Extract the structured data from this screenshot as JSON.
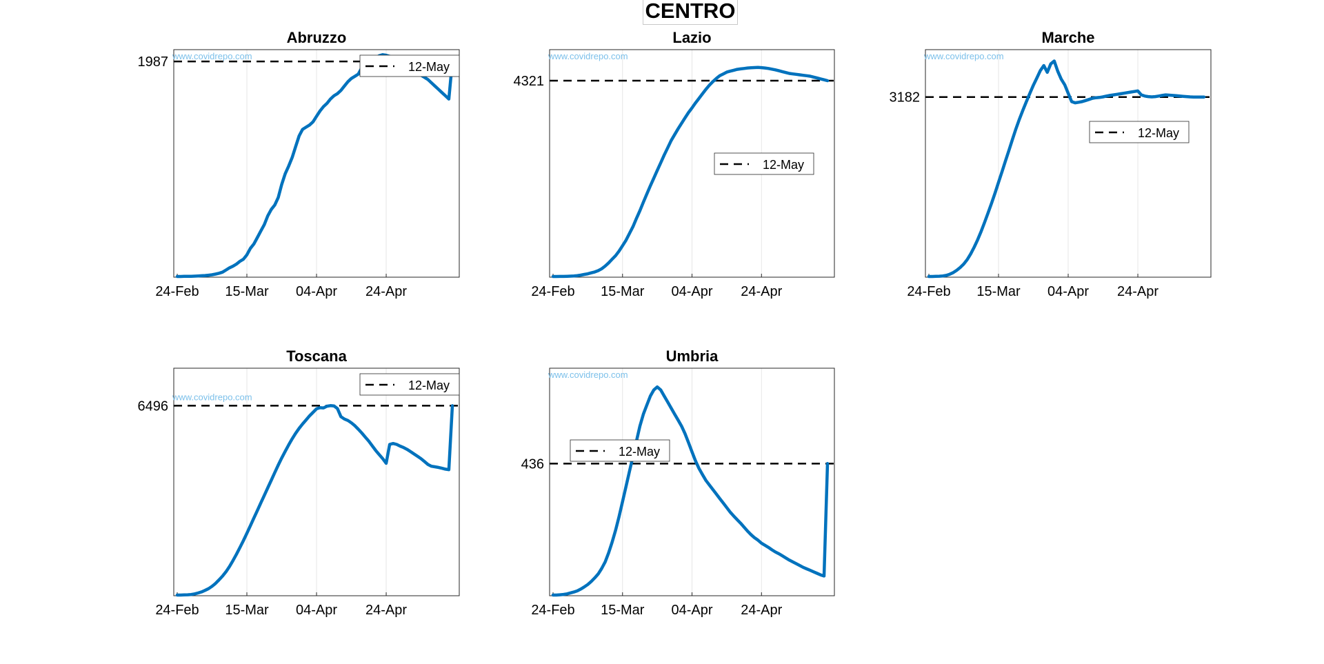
{
  "figure": {
    "title": "CENTRO"
  },
  "watermark": "www.covidrepo.com",
  "colors": {
    "series": "#0072bd",
    "reference": "#000000",
    "grid": "#e6e6e6",
    "axes": "#262626"
  },
  "chart_data": [
    {
      "type": "line",
      "title": "Abruzzo",
      "x_ticks": [
        "24-Feb",
        "15-Mar",
        "04-Apr",
        "24-Apr"
      ],
      "x_range_days": [
        0,
        79
      ],
      "ylim": [
        0,
        2090
      ],
      "y_ticks": [
        1987
      ],
      "reference_line": {
        "label": "12-May",
        "value": 1987
      },
      "legend": {
        "entry": "12-May",
        "placement": "top-right"
      },
      "series": [
        {
          "values": [
            0,
            0,
            1,
            1,
            2,
            3,
            5,
            7,
            9,
            12,
            16,
            22,
            30,
            40,
            60,
            80,
            95,
            115,
            140,
            160,
            200,
            260,
            300,
            360,
            420,
            480,
            560,
            620,
            660,
            730,
            850,
            950,
            1020,
            1100,
            1200,
            1300,
            1360,
            1380,
            1400,
            1430,
            1480,
            1530,
            1570,
            1600,
            1640,
            1670,
            1690,
            1720,
            1760,
            1800,
            1830,
            1850,
            1870,
            1930,
            1955,
            1975,
            2010,
            2020,
            2040,
            2050,
            2045,
            2035,
            2020,
            2000,
            1985,
            1960,
            1940,
            1920,
            1900,
            1880,
            1860,
            1840,
            1820,
            1790,
            1760,
            1730,
            1700,
            1670,
            1640,
            1987
          ]
        }
      ]
    },
    {
      "type": "line",
      "title": "Lazio",
      "x_ticks": [
        "24-Feb",
        "15-Mar",
        "04-Apr",
        "24-Apr"
      ],
      "x_range_days": [
        0,
        79
      ],
      "ylim": [
        0,
        4990
      ],
      "y_ticks": [
        4321
      ],
      "reference_line": {
        "label": "12-May",
        "value": 4321
      },
      "legend": {
        "entry": "12-May",
        "placement": "center-right"
      },
      "series": [
        {
          "values": [
            0,
            0,
            1,
            2,
            4,
            7,
            12,
            20,
            30,
            45,
            60,
            80,
            100,
            130,
            170,
            230,
            300,
            380,
            460,
            560,
            680,
            800,
            950,
            1100,
            1280,
            1450,
            1640,
            1820,
            2000,
            2170,
            2340,
            2510,
            2680,
            2840,
            3000,
            3130,
            3260,
            3380,
            3500,
            3620,
            3720,
            3830,
            3930,
            4030,
            4130,
            4220,
            4300,
            4370,
            4430,
            4470,
            4510,
            4530,
            4550,
            4570,
            4580,
            4590,
            4600,
            4605,
            4610,
            4612,
            4608,
            4600,
            4590,
            4575,
            4560,
            4540,
            4520,
            4500,
            4480,
            4470,
            4460,
            4450,
            4440,
            4430,
            4420,
            4400,
            4380,
            4360,
            4340,
            4321
          ]
        }
      ]
    },
    {
      "type": "line",
      "title": "Marche",
      "x_ticks": [
        "24-Feb",
        "15-Mar",
        "04-Apr",
        "24-Apr"
      ],
      "x_range_days": [
        0,
        79
      ],
      "ylim": [
        0,
        4010
      ],
      "y_ticks": [
        3182
      ],
      "reference_line": {
        "label": "12-May",
        "value": 3182
      },
      "legend": {
        "entry": "12-May",
        "placement": "center-right"
      },
      "series": [
        {
          "values": [
            0,
            0,
            2,
            5,
            10,
            20,
            40,
            70,
            110,
            160,
            220,
            300,
            400,
            520,
            650,
            800,
            960,
            1130,
            1300,
            1480,
            1670,
            1860,
            2050,
            2240,
            2430,
            2620,
            2790,
            2950,
            3100,
            3250,
            3390,
            3520,
            3650,
            3740,
            3620,
            3770,
            3820,
            3640,
            3500,
            3400,
            3250,
            3100,
            3080,
            3090,
            3100,
            3120,
            3140,
            3160,
            3170,
            3175,
            3185,
            3200,
            3210,
            3220,
            3230,
            3240,
            3250,
            3260,
            3270,
            3280,
            3290,
            3220,
            3200,
            3190,
            3185,
            3190,
            3200,
            3210,
            3220,
            3215,
            3210,
            3205,
            3200,
            3195,
            3190,
            3185,
            3182,
            3182,
            3182,
            3182
          ]
        }
      ]
    },
    {
      "type": "line",
      "title": "Toscana",
      "x_ticks": [
        "24-Feb",
        "15-Mar",
        "04-Apr",
        "24-Apr"
      ],
      "x_range_days": [
        0,
        79
      ],
      "ylim": [
        0,
        7760
      ],
      "y_ticks": [
        6496
      ],
      "reference_line": {
        "label": "12-May",
        "value": 6496
      },
      "legend": {
        "entry": "12-May",
        "placement": "top-right"
      },
      "series": [
        {
          "values": [
            0,
            0,
            5,
            10,
            20,
            40,
            70,
            110,
            160,
            220,
            300,
            400,
            520,
            650,
            800,
            980,
            1180,
            1400,
            1630,
            1870,
            2120,
            2380,
            2640,
            2900,
            3160,
            3420,
            3680,
            3940,
            4200,
            4460,
            4700,
            4930,
            5150,
            5360,
            5550,
            5720,
            5870,
            6010,
            6150,
            6270,
            6390,
            6430,
            6420,
            6480,
            6500,
            6490,
            6400,
            6120,
            6040,
            5990,
            5910,
            5810,
            5690,
            5560,
            5420,
            5280,
            5120,
            4960,
            4820,
            4680,
            4520,
            5170,
            5200,
            5170,
            5110,
            5060,
            5000,
            4920,
            4840,
            4760,
            4680,
            4580,
            4480,
            4420,
            4400,
            4380,
            4350,
            4320,
            4300,
            6496
          ]
        }
      ]
    },
    {
      "type": "line",
      "title": "Umbria",
      "x_ticks": [
        "24-Feb",
        "15-Mar",
        "04-Apr",
        "24-Apr"
      ],
      "x_range_days": [
        0,
        79
      ],
      "ylim": [
        0,
        750
      ],
      "y_ticks": [
        436
      ],
      "reference_line": {
        "label": "12-May",
        "value": 436
      },
      "legend": {
        "entry": "12-May",
        "placement": "center-left"
      },
      "series": [
        {
          "values": [
            0,
            0,
            1,
            2,
            4,
            7,
            10,
            14,
            20,
            27,
            35,
            45,
            57,
            70,
            88,
            110,
            140,
            175,
            215,
            260,
            310,
            360,
            410,
            460,
            510,
            560,
            600,
            630,
            660,
            680,
            690,
            680,
            660,
            640,
            620,
            600,
            580,
            560,
            535,
            505,
            475,
            445,
            420,
            400,
            380,
            365,
            350,
            335,
            320,
            305,
            290,
            275,
            262,
            250,
            238,
            225,
            212,
            200,
            190,
            182,
            172,
            165,
            158,
            150,
            143,
            137,
            130,
            123,
            116,
            110,
            104,
            98,
            92,
            87,
            82,
            77,
            72,
            67,
            63,
            436
          ]
        }
      ]
    }
  ]
}
